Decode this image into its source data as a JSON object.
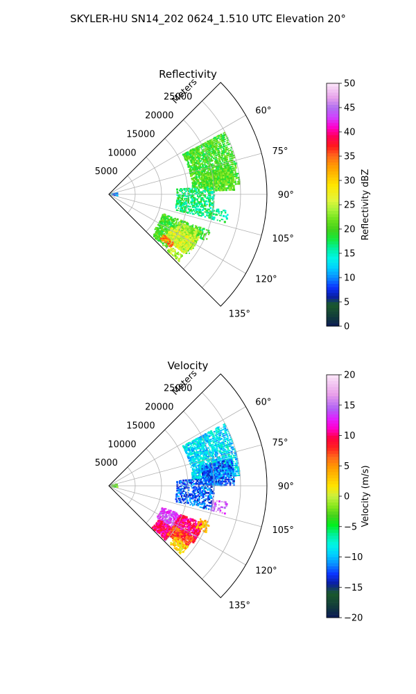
{
  "figure": {
    "title": "SKYLER-HU  SN14_202  0624_1.510 UTC Elevation 20°"
  },
  "chart_data": [
    {
      "type": "heatmap",
      "subtype": "polar-sector",
      "title": "Reflectivity",
      "radial_axis_label": "Meters",
      "radial_ticks": [
        5000,
        10000,
        15000,
        20000,
        25000
      ],
      "radial_tick_labels": [
        "5000",
        "10000",
        "15000",
        "20000",
        "25000"
      ],
      "radial_range": [
        0,
        30000
      ],
      "angular_ticks": [
        60,
        75,
        90,
        105,
        120,
        135
      ],
      "angular_tick_labels": [
        "60°",
        "75°",
        "90°",
        "105°",
        "120°",
        "135°"
      ],
      "angular_range": [
        45,
        135
      ],
      "grid": true,
      "colorbar": {
        "label": "Reflectivity dBZ",
        "min": 0,
        "max": 50,
        "ticks": [
          0,
          5,
          10,
          15,
          20,
          25,
          30,
          35,
          40,
          45,
          50
        ],
        "tick_labels": [
          "0",
          "5",
          "10",
          "15",
          "20",
          "25",
          "30",
          "35",
          "40",
          "45",
          "50"
        ],
        "stops": [
          [
            0,
            "#0b1a55"
          ],
          [
            0.04,
            "#123d3a"
          ],
          [
            0.09,
            "#1a5a2a"
          ],
          [
            0.12,
            "#0a1ea0"
          ],
          [
            0.16,
            "#0b33ff"
          ],
          [
            0.2,
            "#0a8cff"
          ],
          [
            0.24,
            "#00cfff"
          ],
          [
            0.28,
            "#00f5e6"
          ],
          [
            0.32,
            "#00f0a0"
          ],
          [
            0.36,
            "#16e83a"
          ],
          [
            0.4,
            "#44d21a"
          ],
          [
            0.44,
            "#6ee31c"
          ],
          [
            0.48,
            "#a9f238"
          ],
          [
            0.52,
            "#e3f53a"
          ],
          [
            0.58,
            "#ffe600"
          ],
          [
            0.62,
            "#ffc000"
          ],
          [
            0.66,
            "#ff9a00"
          ],
          [
            0.7,
            "#ff6a1a"
          ],
          [
            0.74,
            "#ff1b1b"
          ],
          [
            0.78,
            "#ff0055"
          ],
          [
            0.82,
            "#ff00cc"
          ],
          [
            0.86,
            "#d040ff"
          ],
          [
            0.9,
            "#b070f0"
          ],
          [
            0.94,
            "#e7a0ea"
          ],
          [
            1,
            "#fbe6f8"
          ]
        ]
      },
      "echoes": [
        {
          "r": [
            16000,
            25000
          ],
          "az": [
            62,
            86
          ],
          "value": 20,
          "density": 0.8
        },
        {
          "r": [
            18000,
            24000
          ],
          "az": [
            78,
            88
          ],
          "value": 21,
          "density": 0.9
        },
        {
          "r": [
            13000,
            20000
          ],
          "az": [
            86,
            104
          ],
          "value": 17,
          "density": 0.55
        },
        {
          "r": [
            11000,
            19000
          ],
          "az": [
            110,
            128
          ],
          "value": 20,
          "density": 0.55
        },
        {
          "r": [
            11500,
            15000
          ],
          "az": [
            126,
            134
          ],
          "value": 20,
          "density": 0.8
        },
        {
          "r": [
            14500,
            19000
          ],
          "az": [
            112,
            124
          ],
          "value": 24,
          "density": 0.9
        },
        {
          "r": [
            13500,
            18500
          ],
          "az": [
            118,
            128
          ],
          "value": 26,
          "density": 0.9
        },
        {
          "r": [
            13000,
            15500
          ],
          "az": [
            127,
            131
          ],
          "value": 34,
          "density": 0.85
        },
        {
          "r": [
            15500,
            18500
          ],
          "az": [
            130,
            134
          ],
          "value": 24,
          "density": 0.65
        },
        {
          "r": [
            18500,
            20500
          ],
          "az": [
            110,
            116
          ],
          "value": 19,
          "density": 0.55
        },
        {
          "r": [
            20000,
            23000
          ],
          "az": [
            98,
            104
          ],
          "value": 16,
          "density": 0.4
        },
        {
          "r": [
            400,
            1800
          ],
          "az": [
            80,
            100
          ],
          "value": 10,
          "density": 0.45
        }
      ]
    },
    {
      "type": "heatmap",
      "subtype": "polar-sector",
      "title": "Velocity",
      "radial_axis_label": "Meters",
      "radial_ticks": [
        5000,
        10000,
        15000,
        20000,
        25000
      ],
      "radial_tick_labels": [
        "5000",
        "10000",
        "15000",
        "20000",
        "25000"
      ],
      "radial_range": [
        0,
        30000
      ],
      "angular_ticks": [
        60,
        75,
        90,
        105,
        120,
        135
      ],
      "angular_tick_labels": [
        "60°",
        "75°",
        "90°",
        "105°",
        "120°",
        "135°"
      ],
      "angular_range": [
        45,
        135
      ],
      "grid": true,
      "colorbar": {
        "label": "Velocity (m/s)",
        "min": -20,
        "max": 20,
        "ticks": [
          -20,
          -15,
          -10,
          -5,
          0,
          5,
          10,
          15,
          20
        ],
        "tick_labels": [
          "−20",
          "−15",
          "−10",
          "−5",
          "0",
          "5",
          "10",
          "15",
          "20"
        ],
        "stops": [
          [
            0,
            "#0b1a55"
          ],
          [
            0.05,
            "#123d3a"
          ],
          [
            0.1,
            "#1a5a2a"
          ],
          [
            0.14,
            "#0a1ea0"
          ],
          [
            0.18,
            "#0b33ff"
          ],
          [
            0.22,
            "#0a8cff"
          ],
          [
            0.26,
            "#00cfff"
          ],
          [
            0.3,
            "#00f5e6"
          ],
          [
            0.34,
            "#00f0a0"
          ],
          [
            0.38,
            "#00f020"
          ],
          [
            0.42,
            "#44d21a"
          ],
          [
            0.46,
            "#88e81c"
          ],
          [
            0.5,
            "#c8f040"
          ],
          [
            0.54,
            "#ffe600"
          ],
          [
            0.58,
            "#ffc000"
          ],
          [
            0.62,
            "#ff9a00"
          ],
          [
            0.66,
            "#ff6a1a"
          ],
          [
            0.7,
            "#ff2020"
          ],
          [
            0.74,
            "#ff0040"
          ],
          [
            0.78,
            "#ff00cc"
          ],
          [
            0.82,
            "#e020ff"
          ],
          [
            0.86,
            "#b060f5"
          ],
          [
            0.92,
            "#e9a0ea"
          ],
          [
            1,
            "#fbe6f8"
          ]
        ]
      },
      "echoes": [
        {
          "r": [
            16000,
            25000
          ],
          "az": [
            62,
            86
          ],
          "value": -9,
          "density": 0.8
        },
        {
          "r": [
            18000,
            24000
          ],
          "az": [
            78,
            90
          ],
          "value": -12,
          "density": 0.85
        },
        {
          "r": [
            13000,
            20000
          ],
          "az": [
            86,
            104
          ],
          "value": -12,
          "density": 0.55
        },
        {
          "r": [
            11000,
            14500
          ],
          "az": [
            112,
            124
          ],
          "value": 14,
          "density": 0.7
        },
        {
          "r": [
            11500,
            15000
          ],
          "az": [
            124,
            134
          ],
          "value": 10,
          "density": 0.85
        },
        {
          "r": [
            14500,
            19500
          ],
          "az": [
            112,
            124
          ],
          "value": 10,
          "density": 0.9
        },
        {
          "r": [
            14500,
            19000
          ],
          "az": [
            122,
            130
          ],
          "value": 7,
          "density": 0.85
        },
        {
          "r": [
            16000,
            19000
          ],
          "az": [
            128,
            134
          ],
          "value": 2,
          "density": 0.7
        },
        {
          "r": [
            18500,
            20500
          ],
          "az": [
            110,
            116
          ],
          "value": 3,
          "density": 0.55
        },
        {
          "r": [
            20000,
            23000
          ],
          "az": [
            98,
            104
          ],
          "value": 15,
          "density": 0.4
        },
        {
          "r": [
            400,
            1800
          ],
          "az": [
            80,
            100
          ],
          "value": -3,
          "density": 0.45
        }
      ]
    }
  ]
}
